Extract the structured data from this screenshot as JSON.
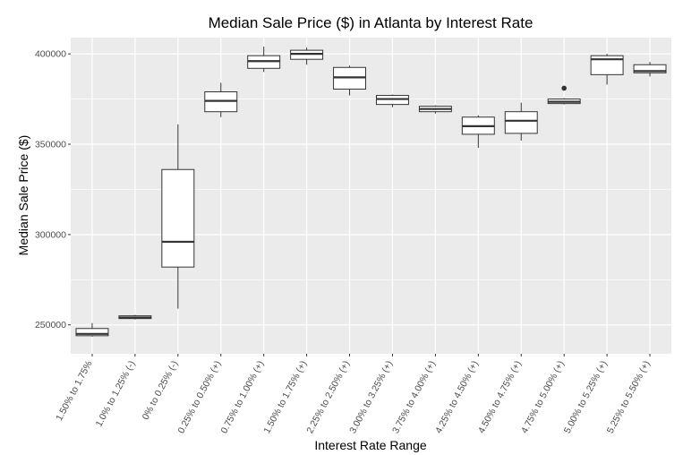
{
  "chart_data": {
    "type": "boxplot",
    "title": "Median Sale Price ($) in Atlanta by Interest Rate",
    "xlabel": "Interest Rate Range",
    "ylabel": "Median Sale Price ($)",
    "ylim": [
      234000,
      409000
    ],
    "yticks": [
      250000,
      300000,
      350000,
      400000
    ],
    "ytick_labels": [
      "250000",
      "300000",
      "350000",
      "400000"
    ],
    "grid": true,
    "categories": [
      "1.50% to 1.75%",
      "1.0% to 1.25% (-)",
      "0% to 0.25% (-)",
      "0.25% to 0.50% (+)",
      "0.75% to 1.00% (+)",
      "1.50% to 1.75% (+)",
      "2.25% to 2.50% (+)",
      "3.00% to 3.25% (+)",
      "3.75% to 4.00% (+)",
      "4.25% to 4.50% (+)",
      "4.50% to 4.75% (+)",
      "4.75% to 5.00% (+)",
      "5.00% to 5.25% (+)",
      "5.25% to 5.50% (+)"
    ],
    "boxes": [
      {
        "min": 243500,
        "q1": 244000,
        "median": 245000,
        "q3": 248000,
        "max": 251000,
        "outliers": []
      },
      {
        "min": 253000,
        "q1": 253500,
        "median": 254000,
        "q3": 255000,
        "max": 255500,
        "outliers": []
      },
      {
        "min": 259000,
        "q1": 282000,
        "median": 296000,
        "q3": 336000,
        "max": 361000,
        "outliers": []
      },
      {
        "min": 365000,
        "q1": 368000,
        "median": 374000,
        "q3": 379000,
        "max": 384000,
        "outliers": []
      },
      {
        "min": 390000,
        "q1": 392000,
        "median": 396000,
        "q3": 399000,
        "max": 404000,
        "outliers": []
      },
      {
        "min": 394000,
        "q1": 397000,
        "median": 400000,
        "q3": 402000,
        "max": 403500,
        "outliers": []
      },
      {
        "min": 377000,
        "q1": 380500,
        "median": 387000,
        "q3": 392500,
        "max": 393500,
        "outliers": []
      },
      {
        "min": 370500,
        "q1": 372000,
        "median": 375000,
        "q3": 377000,
        "max": 377500,
        "outliers": []
      },
      {
        "min": 367000,
        "q1": 368000,
        "median": 369500,
        "q3": 371000,
        "max": 371500,
        "outliers": []
      },
      {
        "min": 348000,
        "q1": 355500,
        "median": 360000,
        "q3": 365000,
        "max": 366000,
        "outliers": []
      },
      {
        "min": 352000,
        "q1": 356000,
        "median": 363000,
        "q3": 368000,
        "max": 373000,
        "outliers": []
      },
      {
        "min": 372000,
        "q1": 372500,
        "median": 373500,
        "q3": 375000,
        "max": 375500,
        "outliers": [
          381000
        ]
      },
      {
        "min": 383000,
        "q1": 388500,
        "median": 397000,
        "q3": 399000,
        "max": 400000,
        "outliers": []
      },
      {
        "min": 387500,
        "q1": 389500,
        "median": 390500,
        "q3": 394000,
        "max": 395500,
        "outliers": []
      }
    ],
    "colors": {
      "panel": "#ebebeb",
      "grid_major": "#ffffff",
      "box_fill": "#ffffff",
      "box_stroke": "#333333",
      "tick_text": "#4d4d4d"
    }
  }
}
